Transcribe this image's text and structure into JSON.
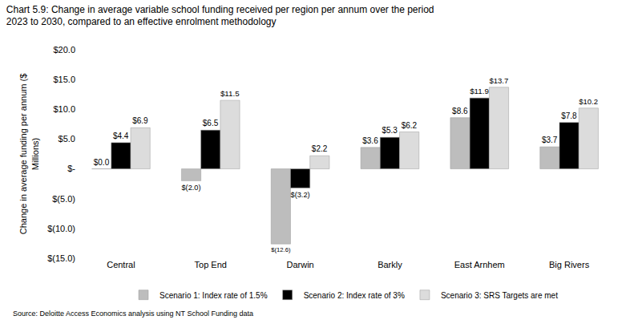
{
  "chart_data": {
    "type": "bar",
    "title": "Chart 5.9: Change in average variable school funding received per region per annum over the period 2023 to 2030, compared to an effective enrolment methodology",
    "y_label": "Change in average funding per annum ($ Millions)",
    "annotations": [
      "Source: Deloitte Access Economics analysis using NT School Funding data"
    ],
    "categories": [
      "Central",
      "Top End",
      "Darwin",
      "Barkly",
      "East Arnhem",
      "Big Rivers"
    ],
    "series": [
      {
        "name": "Scenario 1: Index rate of 1.5%",
        "color": "#bdbdbd",
        "values": [
          0.0,
          -2.0,
          -12.6,
          3.6,
          8.6,
          3.7
        ],
        "value_labels": [
          "$0.0",
          "$(2.0)",
          "$(12.6)",
          "$3.6",
          "$8.6",
          "$3.7"
        ]
      },
      {
        "name": "Scenario 2: Index rate of 3%",
        "color": "#000000",
        "values": [
          4.4,
          6.5,
          -3.2,
          5.3,
          11.9,
          7.8
        ],
        "value_labels": [
          "$4.4",
          "$6.5",
          "$(3.2)",
          "$5.3",
          "$11.9",
          "$7.8"
        ]
      },
      {
        "name": "Scenario 3: SRS Targets are met",
        "color": "#dcdcdc",
        "values": [
          6.9,
          11.5,
          2.2,
          6.2,
          13.7,
          10.2
        ],
        "value_labels": [
          "$6.9",
          "$11.5",
          "$2.2",
          "$6.2",
          "$13.7",
          "$10.2"
        ]
      }
    ],
    "ylim": [
      -15,
      20
    ],
    "yticks": [
      {
        "value": -15,
        "label": "$(15.0)"
      },
      {
        "value": -10,
        "label": "$(10.0)"
      },
      {
        "value": -5,
        "label": "$(5.0)"
      },
      {
        "value": 0,
        "label": "$-"
      },
      {
        "value": 5,
        "label": "$5.0"
      },
      {
        "value": 10,
        "label": "$10.0"
      },
      {
        "value": 15,
        "label": "$15.0"
      },
      {
        "value": 20,
        "label": "$20.0"
      }
    ],
    "grid": false,
    "legend": "bottom",
    "data_labels": true
  }
}
